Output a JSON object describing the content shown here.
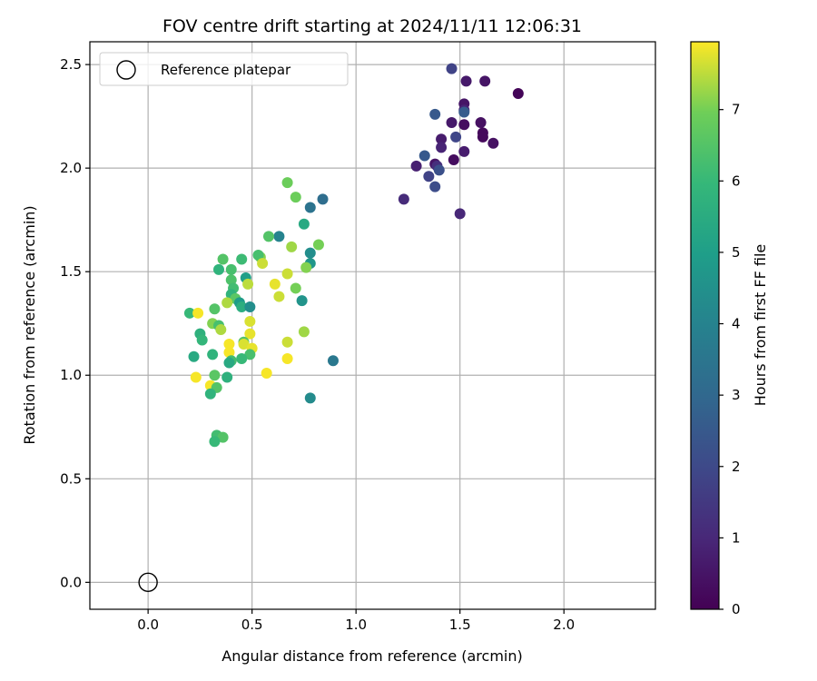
{
  "chart_data": {
    "type": "scatter",
    "title": "FOV centre drift starting at 2024/11/11 12:06:31",
    "xlabel": "Angular distance from reference (arcmin)",
    "ylabel": "Rotation from reference (arcmin)",
    "xlim": [
      -0.28,
      2.44
    ],
    "ylim": [
      -0.13,
      2.61
    ],
    "x_ticks": [
      0.0,
      0.5,
      1.0,
      1.5,
      2.0
    ],
    "x_tick_labels": [
      "0.0",
      "0.5",
      "1.0",
      "1.5",
      "2.0"
    ],
    "y_ticks": [
      0.0,
      0.5,
      1.0,
      1.5,
      2.0,
      2.5
    ],
    "y_tick_labels": [
      "0.0",
      "0.5",
      "1.0",
      "1.5",
      "2.0",
      "2.5"
    ],
    "grid": true,
    "legend": {
      "placement": "top-left",
      "entries": [
        {
          "label": "Reference platepar",
          "marker": "open-circle"
        }
      ]
    },
    "reference_point": {
      "x": 0.0,
      "y": 0.0
    },
    "colorbar": {
      "label": "Hours from first FF file",
      "colormap": "viridis",
      "range": [
        0,
        7.95
      ],
      "ticks": [
        0,
        1,
        2,
        3,
        4,
        5,
        6,
        7
      ],
      "tick_labels": [
        "0",
        "1",
        "2",
        "3",
        "4",
        "5",
        "6",
        "7"
      ]
    },
    "points": [
      {
        "x": 1.46,
        "y": 2.48,
        "h": 1.8
      },
      {
        "x": 1.53,
        "y": 2.42,
        "h": 0.6
      },
      {
        "x": 1.62,
        "y": 2.42,
        "h": 0.5
      },
      {
        "x": 1.78,
        "y": 2.36,
        "h": 0.1
      },
      {
        "x": 1.52,
        "y": 2.31,
        "h": 0.5
      },
      {
        "x": 1.52,
        "y": 2.28,
        "h": 0.9
      },
      {
        "x": 1.52,
        "y": 2.27,
        "h": 2.6
      },
      {
        "x": 1.38,
        "y": 2.26,
        "h": 2.5
      },
      {
        "x": 1.46,
        "y": 2.22,
        "h": 0.6
      },
      {
        "x": 1.52,
        "y": 2.21,
        "h": 0.3
      },
      {
        "x": 1.6,
        "y": 2.22,
        "h": 0.4
      },
      {
        "x": 1.61,
        "y": 2.17,
        "h": 0.2
      },
      {
        "x": 1.48,
        "y": 2.15,
        "h": 1.9
      },
      {
        "x": 1.61,
        "y": 2.15,
        "h": 0.2
      },
      {
        "x": 1.66,
        "y": 2.12,
        "h": 0.4
      },
      {
        "x": 1.41,
        "y": 2.14,
        "h": 0.7
      },
      {
        "x": 1.41,
        "y": 2.1,
        "h": 0.9
      },
      {
        "x": 1.52,
        "y": 2.08,
        "h": 0.7
      },
      {
        "x": 1.33,
        "y": 2.06,
        "h": 2.5
      },
      {
        "x": 1.47,
        "y": 2.04,
        "h": 0.3
      },
      {
        "x": 1.29,
        "y": 2.01,
        "h": 0.8
      },
      {
        "x": 1.38,
        "y": 2.02,
        "h": 0.5
      },
      {
        "x": 1.39,
        "y": 2.01,
        "h": 1.2
      },
      {
        "x": 1.4,
        "y": 1.99,
        "h": 2.2
      },
      {
        "x": 1.35,
        "y": 1.96,
        "h": 1.8
      },
      {
        "x": 1.38,
        "y": 1.91,
        "h": 2.1
      },
      {
        "x": 1.23,
        "y": 1.85,
        "h": 1.1
      },
      {
        "x": 1.5,
        "y": 1.78,
        "h": 1.0
      },
      {
        "x": 0.67,
        "y": 1.93,
        "h": 6.9
      },
      {
        "x": 0.71,
        "y": 1.86,
        "h": 6.9
      },
      {
        "x": 0.84,
        "y": 1.85,
        "h": 3.2
      },
      {
        "x": 0.78,
        "y": 1.81,
        "h": 3.4
      },
      {
        "x": 0.75,
        "y": 1.73,
        "h": 5.4
      },
      {
        "x": 0.63,
        "y": 1.67,
        "h": 4.0
      },
      {
        "x": 0.58,
        "y": 1.67,
        "h": 6.5
      },
      {
        "x": 0.69,
        "y": 1.62,
        "h": 7.3
      },
      {
        "x": 0.82,
        "y": 1.63,
        "h": 7.0
      },
      {
        "x": 0.78,
        "y": 1.59,
        "h": 4.4
      },
      {
        "x": 0.78,
        "y": 1.54,
        "h": 4.7
      },
      {
        "x": 0.54,
        "y": 1.57,
        "h": 7.1
      },
      {
        "x": 0.53,
        "y": 1.58,
        "h": 6.3
      },
      {
        "x": 0.45,
        "y": 1.56,
        "h": 6.1
      },
      {
        "x": 0.36,
        "y": 1.56,
        "h": 6.5
      },
      {
        "x": 0.55,
        "y": 1.54,
        "h": 7.6
      },
      {
        "x": 0.34,
        "y": 1.51,
        "h": 5.8
      },
      {
        "x": 0.4,
        "y": 1.51,
        "h": 6.3
      },
      {
        "x": 0.76,
        "y": 1.52,
        "h": 7.1
      },
      {
        "x": 0.67,
        "y": 1.49,
        "h": 7.6
      },
      {
        "x": 0.4,
        "y": 1.46,
        "h": 6.4
      },
      {
        "x": 0.47,
        "y": 1.47,
        "h": 5.0
      },
      {
        "x": 0.48,
        "y": 1.44,
        "h": 7.5
      },
      {
        "x": 0.61,
        "y": 1.44,
        "h": 7.8
      },
      {
        "x": 0.41,
        "y": 1.42,
        "h": 6.2
      },
      {
        "x": 0.71,
        "y": 1.42,
        "h": 7.0
      },
      {
        "x": 0.4,
        "y": 1.39,
        "h": 5.8
      },
      {
        "x": 0.63,
        "y": 1.38,
        "h": 7.6
      },
      {
        "x": 0.42,
        "y": 1.37,
        "h": 6.6
      },
      {
        "x": 0.74,
        "y": 1.36,
        "h": 4.6
      },
      {
        "x": 0.38,
        "y": 1.35,
        "h": 7.4
      },
      {
        "x": 0.44,
        "y": 1.35,
        "h": 4.9
      },
      {
        "x": 0.45,
        "y": 1.33,
        "h": 5.6
      },
      {
        "x": 0.49,
        "y": 1.33,
        "h": 4.4
      },
      {
        "x": 0.32,
        "y": 1.32,
        "h": 6.5
      },
      {
        "x": 0.2,
        "y": 1.3,
        "h": 6.0
      },
      {
        "x": 0.24,
        "y": 1.3,
        "h": 7.9
      },
      {
        "x": 0.49,
        "y": 1.26,
        "h": 7.7
      },
      {
        "x": 0.31,
        "y": 1.25,
        "h": 7.1
      },
      {
        "x": 0.34,
        "y": 1.24,
        "h": 6.3
      },
      {
        "x": 0.35,
        "y": 1.22,
        "h": 7.4
      },
      {
        "x": 0.75,
        "y": 1.21,
        "h": 7.3
      },
      {
        "x": 0.25,
        "y": 1.2,
        "h": 5.7
      },
      {
        "x": 0.49,
        "y": 1.2,
        "h": 7.8
      },
      {
        "x": 0.26,
        "y": 1.17,
        "h": 5.9
      },
      {
        "x": 0.46,
        "y": 1.16,
        "h": 6.5
      },
      {
        "x": 0.67,
        "y": 1.16,
        "h": 7.6
      },
      {
        "x": 0.39,
        "y": 1.15,
        "h": 7.9
      },
      {
        "x": 0.46,
        "y": 1.15,
        "h": 7.7
      },
      {
        "x": 0.5,
        "y": 1.13,
        "h": 7.8
      },
      {
        "x": 0.31,
        "y": 1.1,
        "h": 5.8
      },
      {
        "x": 0.39,
        "y": 1.11,
        "h": 7.9
      },
      {
        "x": 0.49,
        "y": 1.1,
        "h": 6.3
      },
      {
        "x": 0.22,
        "y": 1.09,
        "h": 5.4
      },
      {
        "x": 0.45,
        "y": 1.08,
        "h": 6.0
      },
      {
        "x": 0.4,
        "y": 1.07,
        "h": 6.2
      },
      {
        "x": 0.39,
        "y": 1.06,
        "h": 5.4
      },
      {
        "x": 0.67,
        "y": 1.08,
        "h": 7.9
      },
      {
        "x": 0.89,
        "y": 1.07,
        "h": 3.6
      },
      {
        "x": 0.57,
        "y": 1.01,
        "h": 7.9
      },
      {
        "x": 0.32,
        "y": 1.0,
        "h": 6.6
      },
      {
        "x": 0.38,
        "y": 0.99,
        "h": 5.7
      },
      {
        "x": 0.23,
        "y": 0.99,
        "h": 7.9
      },
      {
        "x": 0.3,
        "y": 0.95,
        "h": 7.9
      },
      {
        "x": 0.33,
        "y": 0.94,
        "h": 6.5
      },
      {
        "x": 0.3,
        "y": 0.91,
        "h": 5.8
      },
      {
        "x": 0.78,
        "y": 0.89,
        "h": 4.3
      },
      {
        "x": 0.33,
        "y": 0.71,
        "h": 6.2
      },
      {
        "x": 0.36,
        "y": 0.7,
        "h": 6.5
      },
      {
        "x": 0.32,
        "y": 0.68,
        "h": 6.0
      }
    ]
  }
}
